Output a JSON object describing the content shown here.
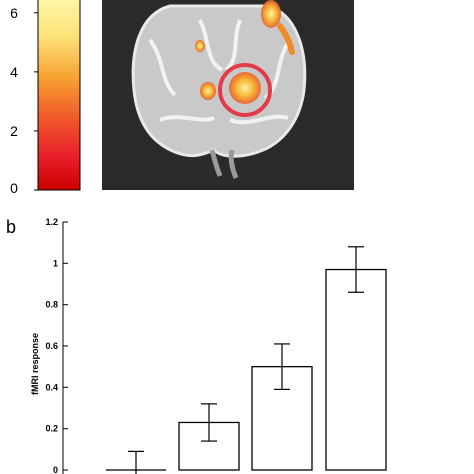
{
  "colorbar": {
    "tick_labels": [
      "0",
      "2",
      "4",
      "6"
    ],
    "ticks": [
      0,
      2,
      4,
      6
    ],
    "range": [
      0,
      6.5
    ],
    "colors": [
      "#cc0000",
      "#e8202a",
      "#f05a2a",
      "#f7a030",
      "#fde27a",
      "#fff7a8"
    ]
  },
  "brain_image": {
    "background": "#2a2a2a",
    "highlight_circle_color": "#e23b4a"
  },
  "panel_label_b": "b",
  "chart_data": {
    "type": "bar",
    "ylabel": "fMRI response",
    "ylim": [
      0,
      1.2
    ],
    "yticks": [
      0,
      0.2,
      0.4,
      0.6,
      0.8,
      1,
      1.2
    ],
    "ytick_labels": [
      "0",
      "0.2",
      "0.4",
      "0.6",
      "0.8",
      "1",
      "1.2"
    ],
    "values": [
      0.0,
      0.23,
      0.5,
      0.97
    ],
    "errors": [
      0.09,
      0.09,
      0.11,
      0.11
    ],
    "bar_fill": "#ffffff",
    "bar_stroke": "#000000"
  }
}
